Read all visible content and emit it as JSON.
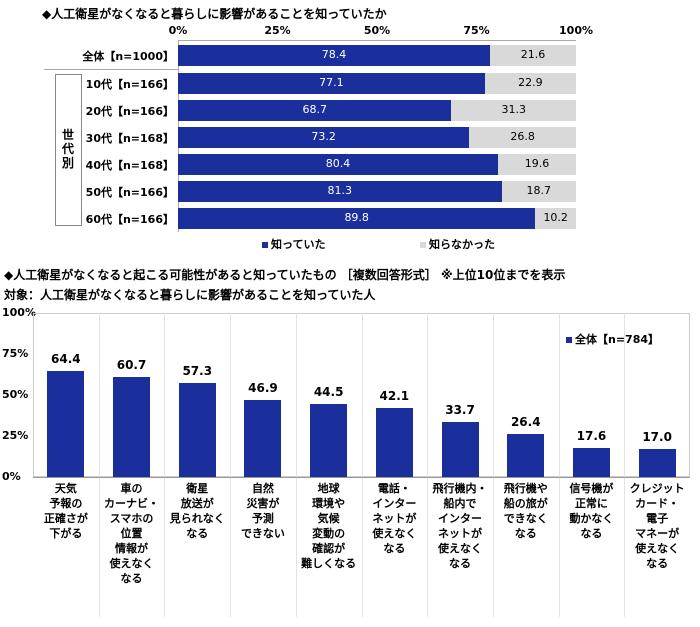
{
  "colors": {
    "known": "#1b2f9c",
    "unknown": "#d9d9d9",
    "grid": "#d0d0d0"
  },
  "chart_data": [
    {
      "type": "bar",
      "orientation": "horizontal-stacked",
      "title": "◆人工衛星がなくなると暮らしに影響があることを知っていたか",
      "xlim": [
        0,
        100
      ],
      "tick_labels": [
        "0%",
        "25%",
        "50%",
        "75%",
        "100%"
      ],
      "group_label": "世\n代\n別",
      "categories": [
        "全体【n=1000】",
        "10代【n=166】",
        "20代【n=166】",
        "30代【n=168】",
        "40代【n=168】",
        "50代【n=166】",
        "60代【n=166】"
      ],
      "series": [
        {
          "name": "知っていた",
          "values": [
            78.4,
            77.1,
            68.7,
            73.2,
            80.4,
            81.3,
            89.8
          ]
        },
        {
          "name": "知らなかった",
          "values": [
            21.6,
            22.9,
            31.3,
            26.8,
            19.6,
            18.7,
            10.2
          ]
        }
      ],
      "legend": "bottom"
    },
    {
      "type": "bar",
      "title": "◆人工衛星がなくなると起こる可能性があると知っていたもの ［複数回答形式］ ※上位10位までを表示",
      "subtitle": "対象：人工衛星がなくなると暮らしに影響があることを知っていた人",
      "ylim": [
        0,
        100
      ],
      "tick_labels": [
        "100%",
        "75%",
        "50%",
        "25%",
        "0%"
      ],
      "categories": [
        "天気\n予報の\n正確さが\n下がる",
        "車の\nカーナビ・\nスマホの\n位置\n情報が\n使えなく\nなる",
        "衛星\n放送が\n見られなく\nなる",
        "自然\n災害が\n予測\nできない",
        "地球\n環境や\n気候\n変動の\n確認が\n難しくなる",
        "電話・\nインター\nネットが\n使えなく\nなる",
        "飛行機内・\n船内で\nインター\nネットが\n使えなく\nなる",
        "飛行機や\n船の旅が\nできなく\nなる",
        "信号機が\n正常に\n動かなく\nなる",
        "クレジット\nカード・\n電子\nマネーが\n使えなく\nなる"
      ],
      "series": [
        {
          "name": "全体【n=784】",
          "values": [
            64.4,
            60.7,
            57.3,
            46.9,
            44.5,
            42.1,
            33.7,
            26.4,
            17.6,
            17.0
          ]
        }
      ],
      "legend": "top-right",
      "grid": true
    }
  ]
}
